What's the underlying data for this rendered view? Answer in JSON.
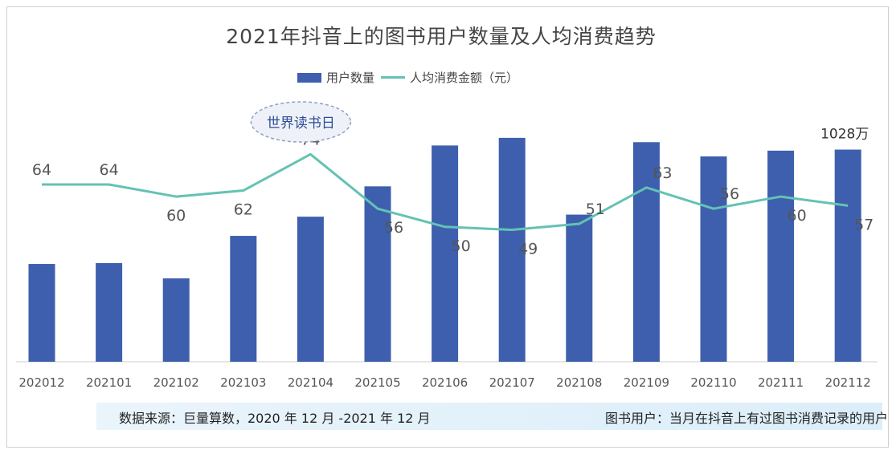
{
  "title": "2021年抖音上的图书用户数量及人均消费趋势",
  "legend": {
    "bar_label": "用户数量",
    "line_label": "人均消费金额（元）"
  },
  "annotation": "世界读书日",
  "top_bar_label": "1028万",
  "footer": {
    "source": "数据来源：巨量算数，2020 年 12 月 -2021 年 12 月",
    "definition": "图书用户：当月在抖音上有过图书消费记录的用户"
  },
  "colors": {
    "bar": "#3d5fae",
    "line": "#64c2b4",
    "text": "#555555",
    "axis": "#cccccc"
  },
  "chart_data": {
    "type": "bar",
    "categories": [
      "202012",
      "202101",
      "202102",
      "202103",
      "202104",
      "202105",
      "202106",
      "202107",
      "202108",
      "202109",
      "202110",
      "202111",
      "202112"
    ],
    "series": [
      {
        "name": "用户数量",
        "type": "bar",
        "unit": "万",
        "values": [
          474,
          478,
          404,
          610,
          703,
          850,
          1048,
          1085,
          713,
          1064,
          995,
          1023,
          1028
        ]
      },
      {
        "name": "人均消费金额（元）",
        "type": "line",
        "values": [
          64,
          64,
          60,
          62,
          74,
          56,
          50,
          49,
          51,
          63,
          56,
          60,
          57
        ]
      }
    ],
    "ylim": [
      0,
      1100
    ],
    "y2lim": [
      0,
      100
    ],
    "grid": false,
    "legend_position": "top"
  }
}
